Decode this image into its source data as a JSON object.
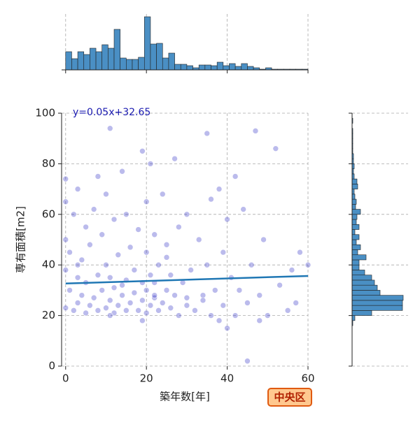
{
  "chart_data": {
    "type": "jointplot",
    "xlabel": "築年数[年]",
    "ylabel": "専有面積[m2]",
    "fit_label": "y=0.05x+32.65",
    "badge": "中央区",
    "color": "#1f1fbf",
    "fit_color": "#1f77b4",
    "hist_color": "#4a8fc4",
    "grid": true,
    "xlim": [
      -1,
      60
    ],
    "xticks": [
      0,
      20,
      40,
      60
    ],
    "ylim": [
      0,
      100
    ],
    "yticks": [
      0,
      20,
      40,
      60,
      80,
      100
    ],
    "x": [
      0,
      0,
      0,
      0,
      0,
      1,
      1,
      2,
      2,
      3,
      3,
      3,
      4,
      4,
      5,
      5,
      5,
      6,
      6,
      7,
      7,
      8,
      8,
      8,
      9,
      9,
      10,
      10,
      10,
      11,
      11,
      11,
      12,
      12,
      12,
      13,
      13,
      14,
      14,
      15,
      15,
      15,
      16,
      16,
      17,
      17,
      18,
      18,
      19,
      19,
      19,
      20,
      20,
      20,
      20,
      21,
      21,
      21,
      22,
      22,
      22,
      23,
      23,
      24,
      24,
      25,
      25,
      26,
      26,
      27,
      27,
      28,
      28,
      29,
      30,
      30,
      31,
      32,
      33,
      34,
      35,
      35,
      36,
      37,
      38,
      38,
      39,
      39,
      40,
      40,
      41,
      42,
      42,
      43,
      44,
      45,
      45,
      46,
      47,
      48,
      49,
      50,
      52,
      53,
      55,
      56,
      57,
      58,
      60,
      11,
      19,
      25,
      34,
      36,
      48,
      3,
      14,
      22,
      30
    ],
    "y": [
      23,
      50,
      65,
      74,
      38,
      30,
      45,
      22,
      60,
      25,
      35,
      70,
      28,
      42,
      21,
      33,
      55,
      24,
      48,
      27,
      62,
      22,
      36,
      75,
      30,
      52,
      23,
      40,
      68,
      26,
      35,
      94,
      21,
      31,
      58,
      24,
      44,
      28,
      77,
      22,
      34,
      60,
      25,
      47,
      29,
      38,
      22,
      54,
      26,
      33,
      85,
      21,
      30,
      45,
      65,
      24,
      36,
      80,
      27,
      52,
      28,
      22,
      40,
      25,
      68,
      30,
      48,
      23,
      36,
      82,
      28,
      20,
      55,
      33,
      24,
      60,
      38,
      22,
      50,
      28,
      92,
      40,
      66,
      30,
      18,
      70,
      45,
      24,
      15,
      58,
      35,
      20,
      75,
      30,
      62,
      2,
      25,
      40,
      93,
      28,
      50,
      20,
      86,
      32,
      22,
      38,
      25,
      45,
      40,
      20,
      18,
      43,
      26,
      20,
      18,
      40,
      32,
      33,
      27
    ],
    "fit": {
      "x": [
        0,
        60
      ],
      "y": [
        32.65,
        35.65
      ]
    },
    "x_hist": {
      "bins": [
        0,
        1.5,
        3,
        4.5,
        6,
        7.5,
        9,
        10.5,
        12,
        13.5,
        15,
        16.5,
        18,
        19.5,
        21,
        22.5,
        24,
        25.5,
        27,
        28.5,
        30,
        31.5,
        33,
        34.5,
        36,
        37.5,
        39,
        40.5,
        42,
        43.5,
        45,
        46.5,
        48,
        49.5,
        51,
        52.5,
        54,
        55.5,
        57,
        58.5,
        60
      ],
      "counts": [
        26,
        16,
        26,
        22,
        31,
        26,
        36,
        31,
        58,
        17,
        15,
        15,
        18,
        76,
        37,
        38,
        17,
        24,
        8,
        8,
        6,
        3,
        7,
        7,
        6,
        11,
        6,
        9,
        5,
        9,
        5,
        3,
        1,
        3,
        1,
        1,
        1,
        1,
        1,
        1
      ],
      "ylim": [
        0,
        80
      ]
    },
    "y_hist": {
      "bins": [
        0,
        2,
        4,
        6,
        8,
        10,
        12,
        14,
        16,
        18,
        20,
        22,
        24,
        26,
        28,
        30,
        32,
        34,
        36,
        38,
        40,
        42,
        44,
        46,
        48,
        50,
        52,
        54,
        56,
        58,
        60,
        62,
        64,
        66,
        68,
        70,
        72,
        74,
        76,
        78,
        80,
        82,
        84,
        86,
        88,
        90,
        92,
        94,
        96,
        98,
        100
      ],
      "counts": [
        0,
        0,
        0,
        0,
        0,
        0,
        0,
        0,
        1,
        4,
        28,
        72,
        72,
        73,
        40,
        36,
        32,
        28,
        18,
        10,
        10,
        20,
        8,
        12,
        6,
        10,
        4,
        10,
        6,
        7,
        12,
        5,
        6,
        4,
        3,
        8,
        7,
        3,
        2,
        3,
        2,
        2,
        1,
        1,
        1,
        1,
        1,
        0,
        1,
        0
      ],
      "xlim": [
        0,
        80
      ]
    }
  }
}
